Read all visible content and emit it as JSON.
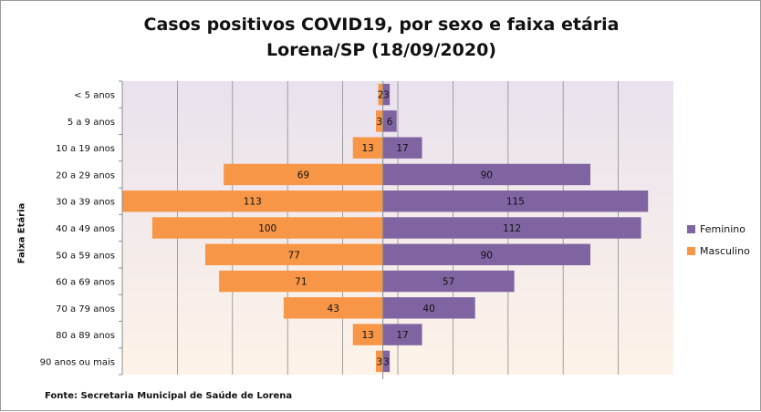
{
  "chart_data": {
    "type": "bar",
    "orientation": "horizontal-diverging",
    "title_lines": [
      "Casos positivos COVID19, por sexo e faixa etária",
      "Lorena/SP (18/09/2020)"
    ],
    "ylabel": "Faixa Etária",
    "source": "Fonte: Secretaria Municipal  de Saúde de Lorena",
    "legend_position": "right",
    "grid": true,
    "xlim": [
      -113,
      126
    ],
    "categories": [
      "< 5 anos",
      "5 a 9 anos",
      "10 a 19 anos",
      "20 a 29 anos",
      "30 a 39 anos",
      "40 a 49 anos",
      "50 a 59 anos",
      "60 a 69 anos",
      "70 a 79 anos",
      "80 a 89 anos",
      "90 anos ou mais"
    ],
    "series": [
      {
        "name": "Feminino",
        "color": "#8064a2",
        "side": "right",
        "values": [
          3,
          6,
          17,
          90,
          115,
          112,
          90,
          57,
          40,
          17,
          3
        ]
      },
      {
        "name": "Masculino",
        "color": "#f79646",
        "side": "left",
        "values": [
          2,
          3,
          13,
          69,
          113,
          100,
          77,
          71,
          43,
          13,
          3
        ]
      }
    ]
  }
}
